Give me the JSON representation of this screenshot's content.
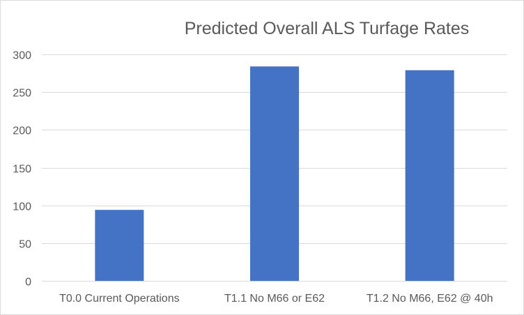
{
  "chart_data": {
    "type": "bar",
    "title": "Predicted Overall ALS Turfage Rates",
    "categories": [
      "T0.0 Current Operations",
      "T1.1 No M66 or E62",
      "T1.2 No M66, E62 @ 40h"
    ],
    "values": [
      94,
      284,
      279
    ],
    "xlabel": "",
    "ylabel": "",
    "ylim": [
      0,
      300
    ],
    "yticks": [
      0,
      50,
      100,
      150,
      200,
      250,
      300
    ],
    "grid": true,
    "legend": "none",
    "bar_color": "#4472c4",
    "grid_color": "#d9d9d9"
  }
}
